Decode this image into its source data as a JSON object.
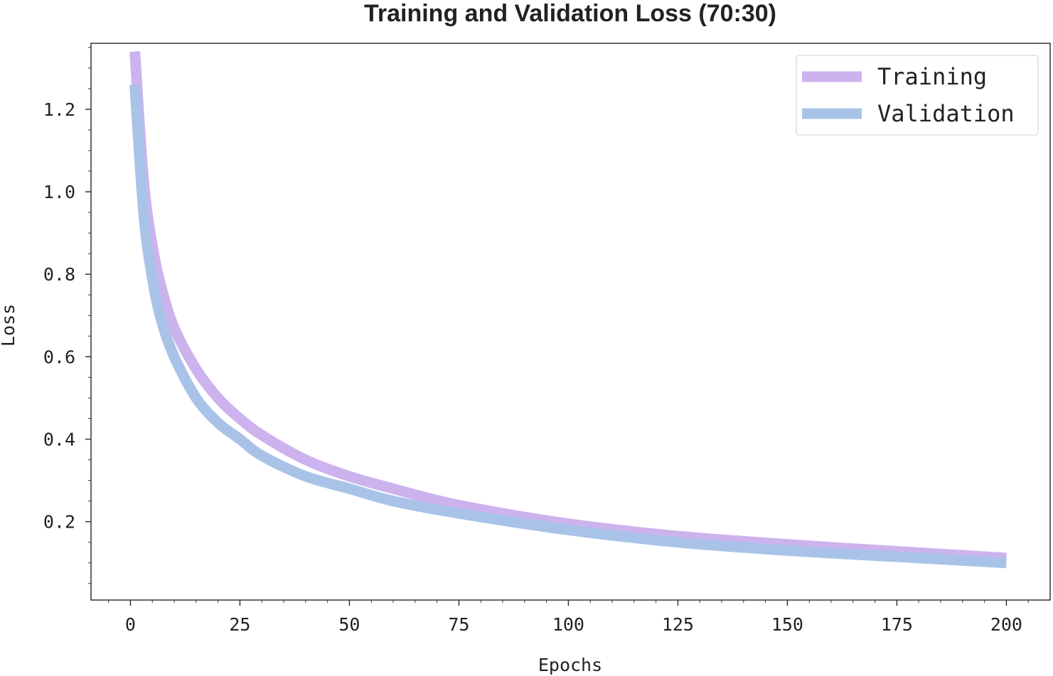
{
  "chart_data": {
    "type": "line",
    "title": "Training and Validation Loss (70:30)",
    "xlabel": "Epochs",
    "ylabel": "Loss",
    "xlim": [
      -9,
      210
    ],
    "ylim": [
      0.01,
      1.36
    ],
    "xticks": [
      0,
      25,
      50,
      75,
      100,
      125,
      150,
      175,
      200
    ],
    "yticks": [
      0.2,
      0.4,
      0.6,
      0.8,
      1.0,
      1.2
    ],
    "ytick_labels": [
      "0.2",
      "0.4",
      "0.6",
      "0.8",
      "1.0",
      "1.2"
    ],
    "legend_position": "top-right",
    "grid": false,
    "series": [
      {
        "name": "Training",
        "color": "#cdb3ee",
        "x": [
          1,
          3,
          5,
          7,
          10,
          15,
          20,
          25,
          30,
          40,
          50,
          60,
          75,
          100,
          125,
          150,
          175,
          200
        ],
        "y": [
          1.34,
          1.03,
          0.87,
          0.77,
          0.67,
          0.57,
          0.5,
          0.45,
          0.41,
          0.35,
          0.31,
          0.28,
          0.24,
          0.195,
          0.165,
          0.145,
          0.128,
          0.112
        ]
      },
      {
        "name": "Validation",
        "color": "#a9c3e8",
        "x": [
          1,
          3,
          5,
          7,
          10,
          15,
          20,
          25,
          30,
          40,
          50,
          60,
          75,
          100,
          125,
          150,
          175,
          200
        ],
        "y": [
          1.26,
          0.95,
          0.79,
          0.69,
          0.6,
          0.5,
          0.44,
          0.4,
          0.36,
          0.31,
          0.28,
          0.25,
          0.22,
          0.18,
          0.15,
          0.13,
          0.115,
          0.1
        ]
      }
    ]
  }
}
